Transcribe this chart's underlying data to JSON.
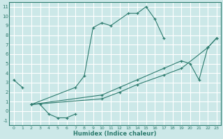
{
  "xlabel": "Humidex (Indice chaleur)",
  "bg_color": "#cce8e8",
  "grid_color": "#ffffff",
  "line_color": "#2d7b6e",
  "xlim": [
    -0.5,
    23.5
  ],
  "ylim": [
    -1.5,
    11.5
  ],
  "xticks": [
    0,
    1,
    2,
    3,
    4,
    5,
    6,
    7,
    8,
    9,
    10,
    11,
    12,
    13,
    14,
    15,
    16,
    17,
    18,
    19,
    20,
    21,
    22,
    23
  ],
  "yticks": [
    -1,
    0,
    1,
    2,
    3,
    4,
    5,
    6,
    7,
    8,
    9,
    10,
    11
  ],
  "series1": {
    "comment": "short lines top-left: 0->3.3, 1->2.5, then gap, then 3->0.7, 4->-0.3, 5->-0.7, 6->-0.7, 7->-0.3",
    "segments": [
      {
        "x": [
          0,
          1
        ],
        "y": [
          3.3,
          2.5
        ]
      },
      {
        "x": [
          3,
          4,
          5,
          6,
          7
        ],
        "y": [
          0.7,
          -0.3,
          -0.7,
          -0.7,
          -0.3
        ]
      }
    ]
  },
  "series2": {
    "comment": "the hump: starts x=2 y=0.7, goes up through 7->2.5, 8->3.7, 9->8.8, 10->9.3, 11->9.0, 13->10.3, 14->10.3, 15->11.0, 16->9.7, 17->7.7",
    "x": [
      2,
      7,
      8,
      9,
      10,
      11,
      13,
      14,
      15,
      16,
      17
    ],
    "y": [
      0.7,
      2.5,
      3.7,
      8.8,
      9.3,
      9.0,
      10.3,
      10.3,
      11.0,
      9.7,
      7.7
    ]
  },
  "series3": {
    "comment": "diagonal line 1 (upper): x=2 y=0.7 to x=23 y=7.7",
    "x": [
      2,
      10,
      12,
      14,
      17,
      19,
      20,
      21,
      22,
      23
    ],
    "y": [
      0.7,
      1.7,
      2.5,
      3.3,
      4.5,
      5.3,
      5.0,
      3.3,
      6.7,
      7.7
    ]
  },
  "series4": {
    "x": [
      2,
      10,
      12,
      14,
      17,
      19,
      22,
      23
    ],
    "y": [
      0.7,
      1.3,
      2.0,
      2.8,
      3.8,
      4.5,
      6.7,
      7.7
    ]
  }
}
